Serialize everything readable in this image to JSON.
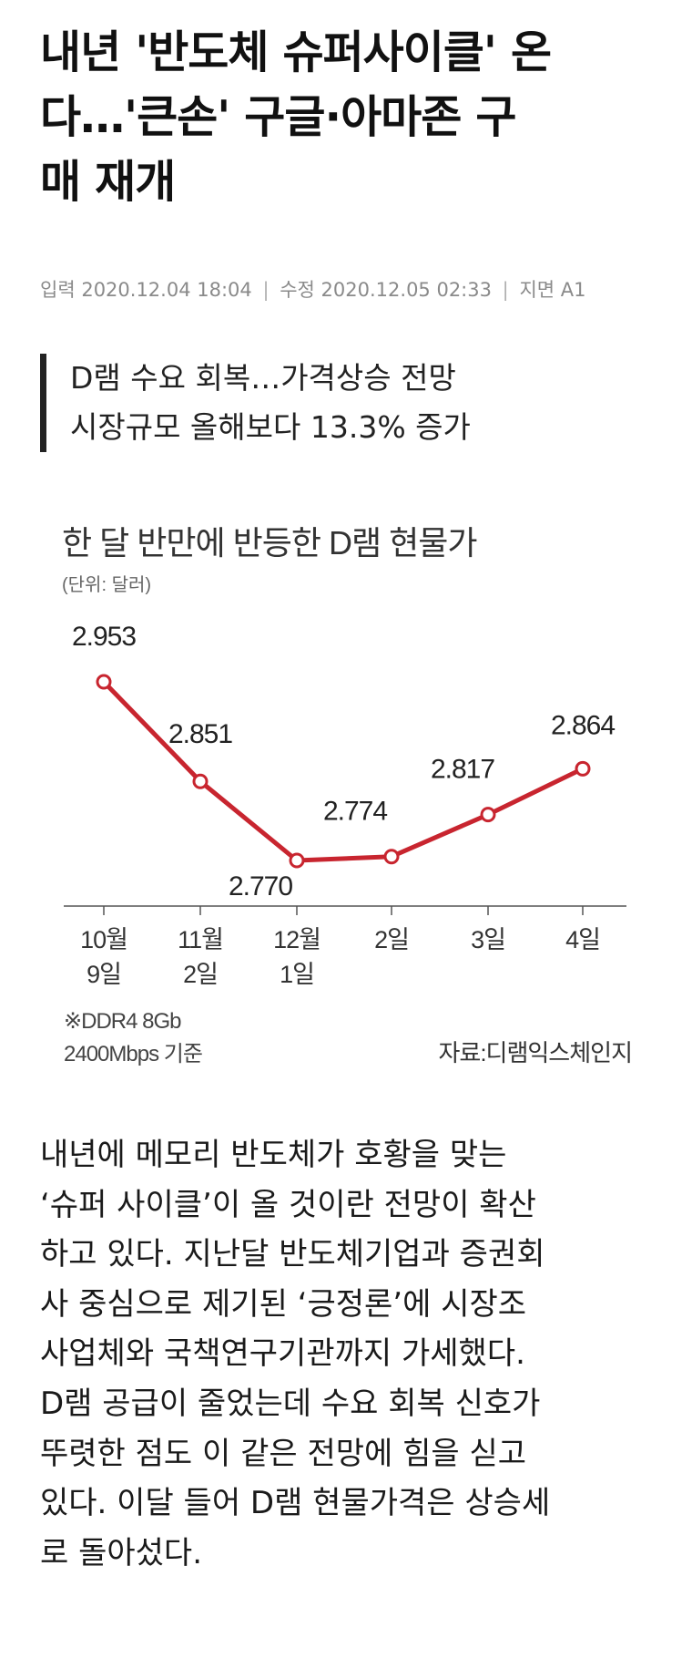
{
  "article": {
    "headline_lines": [
      "내년 '반도체 슈퍼사이클' 온",
      "다…'큰손' 구글·아마존 구",
      "매 재개"
    ],
    "meta": {
      "input_label": "입력",
      "input_time": "2020.12.04 18:04",
      "modified_label": "수정",
      "modified_time": "2020.12.05 02:33",
      "page_label": "지면",
      "page": "A1",
      "separator": "|"
    },
    "subhead_lines": [
      "D램 수요 회복…가격상승 전망",
      "시장규모 올해보다 13.3% 증가"
    ],
    "body_lines": [
      "내년에 메모리 반도체가 호황을 맞는",
      "‘슈퍼 사이클’이 올 것이란 전망이 확산",
      "하고 있다. 지난달 반도체기업과 증권회",
      "사 중심으로 제기된 ‘긍정론’에 시장조",
      "사업체와 국책연구기관까지 가세했다.",
      "D램 공급이 줄었는데 수요 회복 신호가",
      "뚜렷한 점도 이 같은 전망에 힘을 싣고",
      "있다. 이달 들어 D램 현물가격은 상승세",
      "로 돌아섰다."
    ]
  },
  "chart_data": {
    "type": "line",
    "title": "한 달 반만에 반등한 D램 현물가",
    "unit_note": "(단위: 달러)",
    "categories": [
      [
        "10월",
        "9일"
      ],
      [
        "11월",
        "2일"
      ],
      [
        "12월",
        "1일"
      ],
      [
        "2일"
      ],
      [
        "3일"
      ],
      [
        "4일"
      ]
    ],
    "values": [
      2.953,
      2.851,
      2.77,
      2.774,
      2.817,
      2.864
    ],
    "value_labels": [
      "2.953",
      "2.851",
      "2.770",
      "2.774",
      "2.817",
      "2.864"
    ],
    "footnote_lines": [
      "※DDR4 8Gb",
      "2400Mbps 기준"
    ],
    "source": "자료:디램익스체인지",
    "line_color": "#c8252f",
    "grid": false
  }
}
